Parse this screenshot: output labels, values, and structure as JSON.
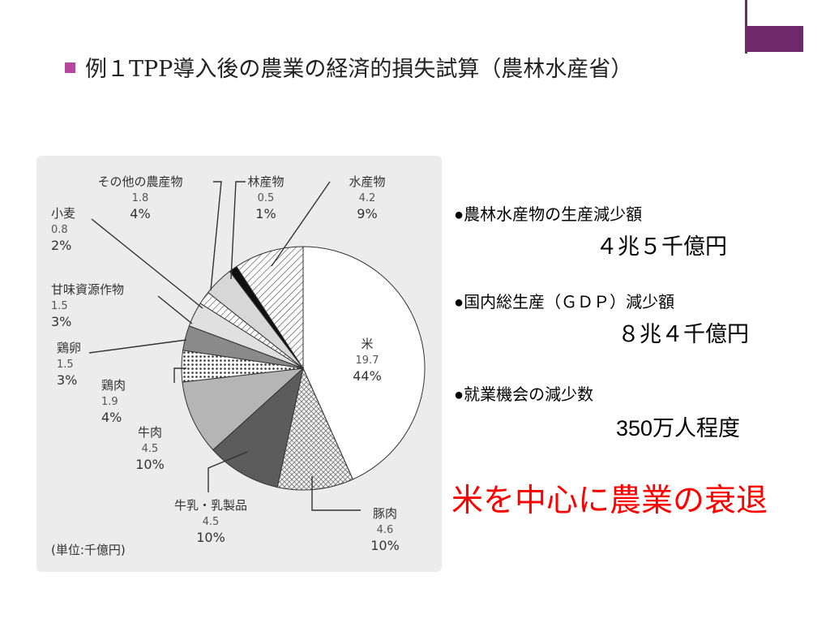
{
  "slide": {
    "title": "例１TPP導入後の農業の経済的損失試算（農林水産省）",
    "accent_color": "#6e2a6a",
    "bullet_color": "#b7479e"
  },
  "stats": [
    {
      "heading": "●農林水産物の生産減少額",
      "value": "４兆５千億円"
    },
    {
      "heading": "●国内総生産（ＧＤＰ）減少額",
      "value": "８兆４千億円"
    },
    {
      "heading": "●就業機会の減少数",
      "value": "350万人程度"
    }
  ],
  "conclusion": "米を中心に農業の衰退",
  "chart_data": {
    "type": "pie",
    "unit_note": "(単位:千億円)",
    "slices": [
      {
        "name": "米",
        "value": 19.7,
        "percent": "44%",
        "fill": "white"
      },
      {
        "name": "豚肉",
        "value": 4.6,
        "percent": "10%",
        "fill": "crosshatch"
      },
      {
        "name": "牛乳・乳製品",
        "value": 4.5,
        "percent": "10%",
        "fill": "#5c5c5c"
      },
      {
        "name": "牛肉",
        "value": 4.5,
        "percent": "10%",
        "fill": "#b5b5b5"
      },
      {
        "name": "鶏肉",
        "value": 1.9,
        "percent": "4%",
        "fill": "dots"
      },
      {
        "name": "鶏卵",
        "value": 1.5,
        "percent": "3%",
        "fill": "#8a8a8a"
      },
      {
        "name": "甘味資源作物",
        "value": 1.5,
        "percent": "3%",
        "fill": "#e0e0e0"
      },
      {
        "name": "小麦",
        "value": 0.8,
        "percent": "2%",
        "fill": "hatch"
      },
      {
        "name": "その他の農産物",
        "value": 1.8,
        "percent": "4%",
        "fill": "#d7d7d7"
      },
      {
        "name": "林産物",
        "value": 0.5,
        "percent": "1%",
        "fill": "#111111"
      },
      {
        "name": "水産物",
        "value": 4.2,
        "percent": "9%",
        "fill": "hatch"
      }
    ]
  }
}
